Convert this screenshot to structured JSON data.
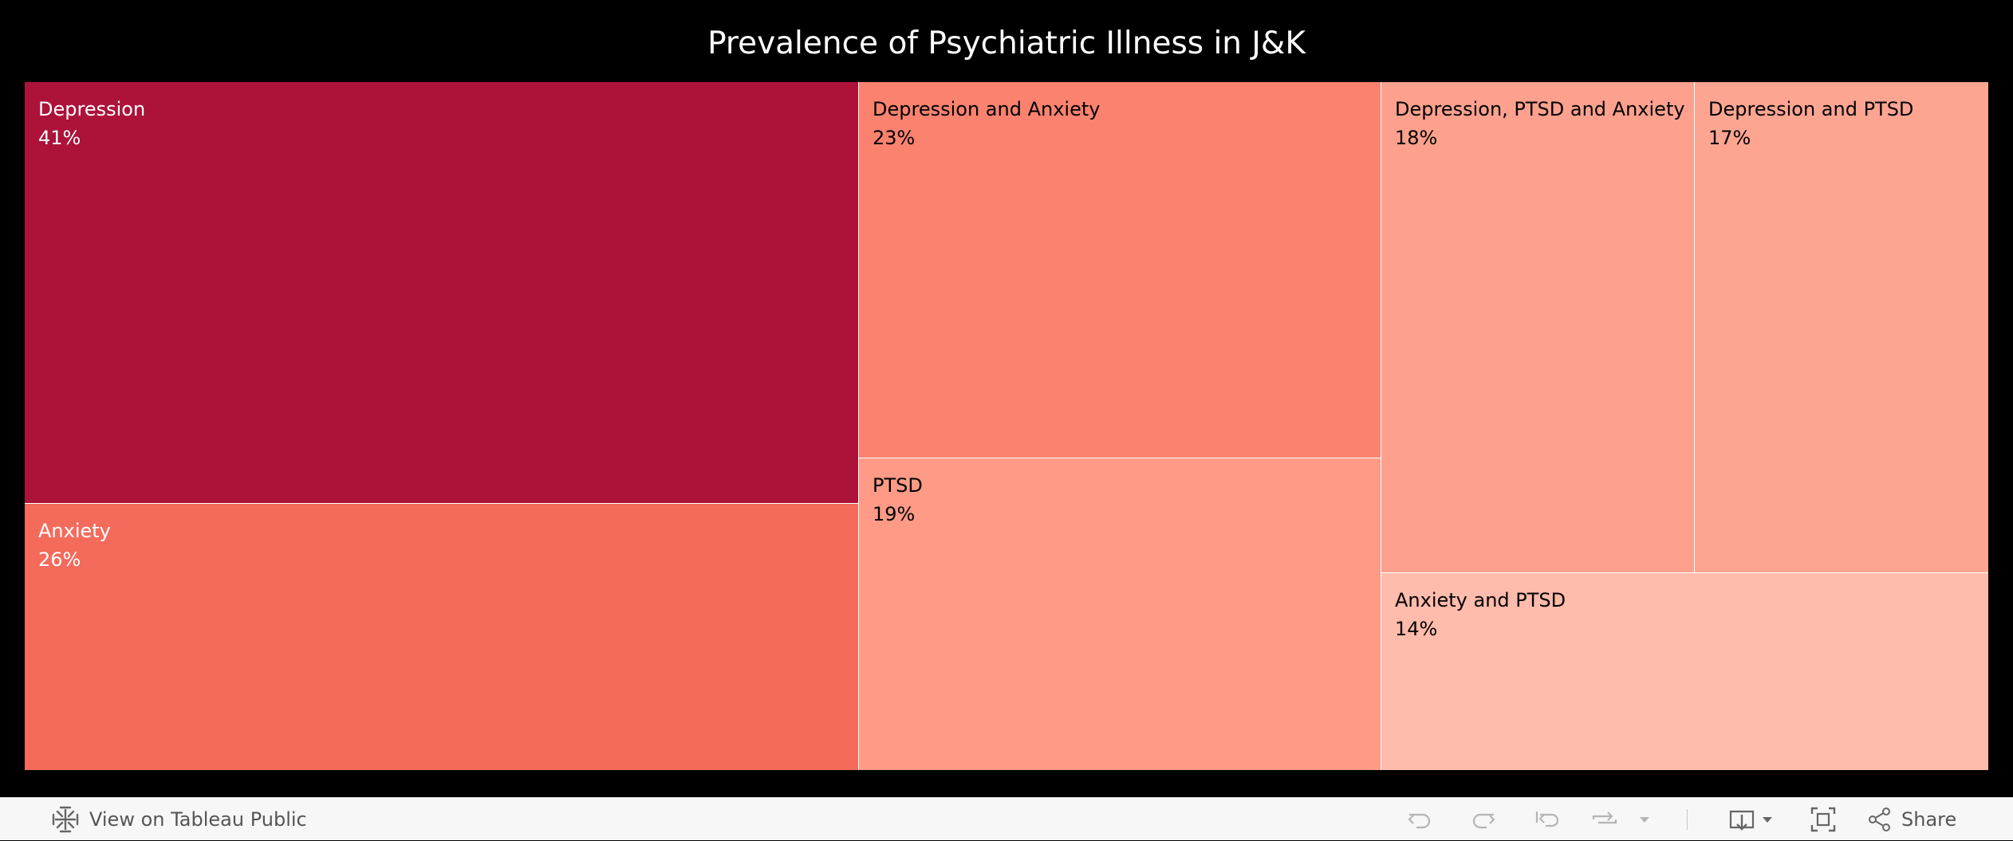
{
  "chart_data": {
    "type": "treemap",
    "title": "Prevalence of Psychiatric Illness in J&K",
    "items": [
      {
        "label": "Depression",
        "value_label": "41%",
        "value": 41,
        "color": "#ad1239",
        "text_color": "#ffffff"
      },
      {
        "label": "Anxiety",
        "value_label": "26%",
        "value": 26,
        "color": "#f46b5c",
        "text_color": "#ffffff"
      },
      {
        "label": "Depression and Anxiety",
        "value_label": "23%",
        "value": 23,
        "color": "#fa826f",
        "text_color": "#000000"
      },
      {
        "label": "PTSD",
        "value_label": "19%",
        "value": 19,
        "color": "#fe9a86",
        "text_color": "#000000"
      },
      {
        "label": "Depression, PTSD and Anxiety",
        "value_label": "18%",
        "value": 18,
        "color": "#fda18e",
        "text_color": "#000000"
      },
      {
        "label": "Depression and PTSD",
        "value_label": "17%",
        "value": 17,
        "color": "#fea592",
        "text_color": "#000000"
      },
      {
        "label": "Anxiety and PTSD",
        "value_label": "14%",
        "value": 14,
        "color": "#ffbbab",
        "text_color": "#000000"
      }
    ],
    "background": "#000000",
    "border_color": "#ffffff"
  },
  "toolbar": {
    "view_on_tableau_label": "View on Tableau Public",
    "share_label": "Share",
    "icons": [
      "tableau-logo-icon",
      "undo-icon",
      "redo-icon",
      "revert-icon",
      "refresh-icon",
      "dropdown-arrow-icon",
      "download-icon",
      "fullscreen-icon",
      "share-icon"
    ]
  }
}
